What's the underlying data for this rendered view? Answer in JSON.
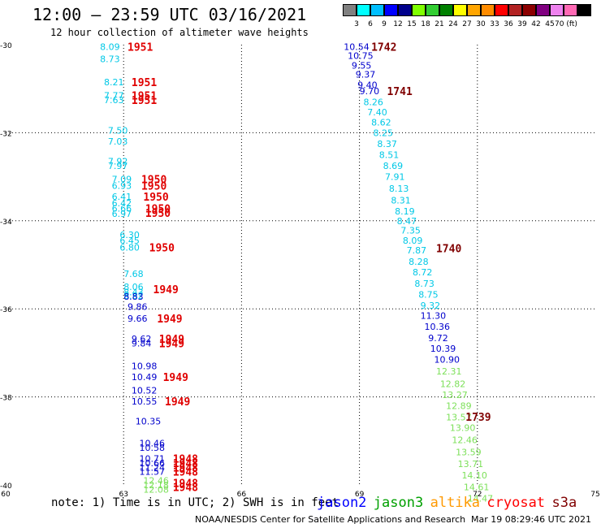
{
  "header": {
    "title": "12:00 – 23:59 UTC 03/16/2021",
    "subtitle": "12 hour collection of altimeter wave heights"
  },
  "color_scale": {
    "colors": [
      "#808080",
      "#00ffff",
      "#00bfff",
      "#0000ff",
      "#00008b",
      "#7fff00",
      "#32cd32",
      "#008000",
      "#ffff00",
      "#ffa500",
      "#ff8c00",
      "#ff0000",
      "#b22222",
      "#8b0000",
      "#800080",
      "#ee82ee",
      "#ff69b4",
      "#000000"
    ],
    "labels": [
      "3",
      "6",
      "9",
      "12",
      "15",
      "18",
      "21",
      "24",
      "27",
      "30",
      "33",
      "36",
      "39",
      "42",
      "45",
      "70 (ft)"
    ]
  },
  "axes": {
    "lat_labels": [
      "-30",
      "-32",
      "-34",
      "-36",
      "-38",
      "-40"
    ],
    "lon_labels": [
      "60",
      "63",
      "66",
      "69",
      "72",
      "75"
    ]
  },
  "track_colors": {
    "c_light": "#00c8e6",
    "c_dark": "#0000cc",
    "c_green": "#7de05a",
    "c_red": "#e00000",
    "c_maroon": "#800000"
  },
  "tracks": [
    {
      "lat": -30.05,
      "lon": 62.4,
      "v": "8.09",
      "c": "c_light"
    },
    {
      "lat": -30.32,
      "lon": 62.4,
      "v": "8.73",
      "c": "c_light"
    },
    {
      "lat": -30.85,
      "lon": 62.5,
      "v": "8.21",
      "c": "c_light"
    },
    {
      "lat": -31.15,
      "lon": 62.5,
      "v": "7.77",
      "c": "c_light"
    },
    {
      "lat": -31.25,
      "lon": 62.5,
      "v": "7.63",
      "c": "c_light"
    },
    {
      "lat": -31.95,
      "lon": 62.6,
      "v": "7.50",
      "c": "c_light"
    },
    {
      "lat": -32.2,
      "lon": 62.6,
      "v": "7.03",
      "c": "c_light"
    },
    {
      "lat": -32.65,
      "lon": 62.6,
      "v": "7.92",
      "c": "c_light"
    },
    {
      "lat": -32.75,
      "lon": 62.6,
      "v": "7.97",
      "c": "c_light"
    },
    {
      "lat": -33.05,
      "lon": 62.7,
      "v": "7.09",
      "c": "c_light"
    },
    {
      "lat": -33.2,
      "lon": 62.7,
      "v": "6.93",
      "c": "c_light"
    },
    {
      "lat": -33.45,
      "lon": 62.7,
      "v": "6.41",
      "c": "c_light"
    },
    {
      "lat": -33.6,
      "lon": 62.7,
      "v": "6.42",
      "c": "c_light"
    },
    {
      "lat": -33.72,
      "lon": 62.7,
      "v": "6.66",
      "c": "c_light"
    },
    {
      "lat": -33.84,
      "lon": 62.7,
      "v": "6.97",
      "c": "c_light"
    },
    {
      "lat": -34.32,
      "lon": 62.9,
      "v": "6.30",
      "c": "c_light"
    },
    {
      "lat": -34.45,
      "lon": 62.9,
      "v": "6.45",
      "c": "c_light"
    },
    {
      "lat": -34.6,
      "lon": 62.9,
      "v": "6.80",
      "c": "c_light"
    },
    {
      "lat": -35.2,
      "lon": 63.0,
      "v": "7.68",
      "c": "c_light"
    },
    {
      "lat": -35.5,
      "lon": 63.0,
      "v": "8.06",
      "c": "c_light"
    },
    {
      "lat": -35.62,
      "lon": 63.0,
      "v": "8.43",
      "c": "c_light"
    },
    {
      "lat": -35.7,
      "lon": 63.0,
      "v": "8.82",
      "c": "c_light"
    },
    {
      "lat": -35.72,
      "lon": 63.0,
      "v": "8.83",
      "c": "c_dark"
    },
    {
      "lat": -35.95,
      "lon": 63.1,
      "v": "9.86",
      "c": "c_dark"
    },
    {
      "lat": -36.22,
      "lon": 63.1,
      "v": "9.66",
      "c": "c_dark"
    },
    {
      "lat": -36.68,
      "lon": 63.2,
      "v": "9.62",
      "c": "c_dark"
    },
    {
      "lat": -36.78,
      "lon": 63.2,
      "v": "9.84",
      "c": "c_dark"
    },
    {
      "lat": -37.3,
      "lon": 63.2,
      "v": "10.98",
      "c": "c_dark"
    },
    {
      "lat": -37.55,
      "lon": 63.2,
      "v": "10.49",
      "c": "c_dark"
    },
    {
      "lat": -37.85,
      "lon": 63.2,
      "v": "10.52",
      "c": "c_dark"
    },
    {
      "lat": -38.1,
      "lon": 63.2,
      "v": "10.55",
      "c": "c_dark"
    },
    {
      "lat": -38.55,
      "lon": 63.3,
      "v": "10.35",
      "c": "c_dark"
    },
    {
      "lat": -39.05,
      "lon": 63.4,
      "v": "10.46",
      "c": "c_dark"
    },
    {
      "lat": -39.15,
      "lon": 63.4,
      "v": "10.58",
      "c": "c_dark"
    },
    {
      "lat": -39.4,
      "lon": 63.4,
      "v": "10.71",
      "c": "c_dark"
    },
    {
      "lat": -39.5,
      "lon": 63.4,
      "v": "10.66",
      "c": "c_dark"
    },
    {
      "lat": -39.6,
      "lon": 63.4,
      "v": "11.24",
      "c": "c_dark"
    },
    {
      "lat": -39.7,
      "lon": 63.4,
      "v": "11.57",
      "c": "c_dark"
    },
    {
      "lat": -39.9,
      "lon": 63.5,
      "v": "12.46",
      "c": "c_green"
    },
    {
      "lat": -40.0,
      "lon": 63.5,
      "v": "12.18",
      "c": "c_green"
    },
    {
      "lat": -40.1,
      "lon": 63.5,
      "v": "12.08",
      "c": "c_green"
    },
    {
      "lat": -30.05,
      "lon": 68.6,
      "v": "10.54",
      "c": "c_dark"
    },
    {
      "lat": -30.25,
      "lon": 68.7,
      "v": "10.75",
      "c": "c_dark"
    },
    {
      "lat": -30.47,
      "lon": 68.8,
      "v": "9.55",
      "c": "c_dark"
    },
    {
      "lat": -30.67,
      "lon": 68.9,
      "v": "9.37",
      "c": "c_dark"
    },
    {
      "lat": -30.91,
      "lon": 68.95,
      "v": "9.40",
      "c": "c_dark"
    },
    {
      "lat": -31.05,
      "lon": 69.0,
      "v": "9.70",
      "c": "c_dark"
    },
    {
      "lat": -31.3,
      "lon": 69.1,
      "v": "8.26",
      "c": "c_light"
    },
    {
      "lat": -31.53,
      "lon": 69.2,
      "v": "7.40",
      "c": "c_light"
    },
    {
      "lat": -31.76,
      "lon": 69.3,
      "v": "8.62",
      "c": "c_light"
    },
    {
      "lat": -32.0,
      "lon": 69.35,
      "v": "8.25",
      "c": "c_light"
    },
    {
      "lat": -32.25,
      "lon": 69.45,
      "v": "8.37",
      "c": "c_light"
    },
    {
      "lat": -32.5,
      "lon": 69.5,
      "v": "8.51",
      "c": "c_light"
    },
    {
      "lat": -32.75,
      "lon": 69.6,
      "v": "8.69",
      "c": "c_light"
    },
    {
      "lat": -33.0,
      "lon": 69.65,
      "v": "7.91",
      "c": "c_light"
    },
    {
      "lat": -33.27,
      "lon": 69.75,
      "v": "8.13",
      "c": "c_light"
    },
    {
      "lat": -33.53,
      "lon": 69.8,
      "v": "8.31",
      "c": "c_light"
    },
    {
      "lat": -33.78,
      "lon": 69.9,
      "v": "8.19",
      "c": "c_light"
    },
    {
      "lat": -34.0,
      "lon": 69.95,
      "v": "8.47",
      "c": "c_light"
    },
    {
      "lat": -34.22,
      "lon": 70.05,
      "v": "7.35",
      "c": "c_light"
    },
    {
      "lat": -34.45,
      "lon": 70.1,
      "v": "8.09",
      "c": "c_light"
    },
    {
      "lat": -34.67,
      "lon": 70.2,
      "v": "7.87",
      "c": "c_light"
    },
    {
      "lat": -34.93,
      "lon": 70.25,
      "v": "8.28",
      "c": "c_light"
    },
    {
      "lat": -35.17,
      "lon": 70.35,
      "v": "8.72",
      "c": "c_light"
    },
    {
      "lat": -35.42,
      "lon": 70.4,
      "v": "8.73",
      "c": "c_light"
    },
    {
      "lat": -35.67,
      "lon": 70.5,
      "v": "8.75",
      "c": "c_light"
    },
    {
      "lat": -35.92,
      "lon": 70.55,
      "v": "9.32",
      "c": "c_light"
    },
    {
      "lat": -36.15,
      "lon": 70.55,
      "v": "11.30",
      "c": "c_dark"
    },
    {
      "lat": -36.4,
      "lon": 70.65,
      "v": "10.36",
      "c": "c_dark"
    },
    {
      "lat": -36.66,
      "lon": 70.75,
      "v": "9.72",
      "c": "c_dark"
    },
    {
      "lat": -36.9,
      "lon": 70.8,
      "v": "10.39",
      "c": "c_dark"
    },
    {
      "lat": -37.15,
      "lon": 70.9,
      "v": "10.90",
      "c": "c_dark"
    },
    {
      "lat": -37.42,
      "lon": 70.95,
      "v": "12.31",
      "c": "c_green"
    },
    {
      "lat": -37.7,
      "lon": 71.05,
      "v": "12.82",
      "c": "c_green"
    },
    {
      "lat": -37.95,
      "lon": 71.1,
      "v": "13.27",
      "c": "c_green"
    },
    {
      "lat": -38.2,
      "lon": 71.2,
      "v": "12.89",
      "c": "c_green"
    },
    {
      "lat": -38.46,
      "lon": 71.2,
      "v": "13.57",
      "c": "c_green"
    },
    {
      "lat": -38.7,
      "lon": 71.3,
      "v": "13.90",
      "c": "c_green"
    },
    {
      "lat": -38.98,
      "lon": 71.35,
      "v": "12.46",
      "c": "c_green"
    },
    {
      "lat": -39.25,
      "lon": 71.45,
      "v": "13.59",
      "c": "c_green"
    },
    {
      "lat": -39.52,
      "lon": 71.5,
      "v": "13.71",
      "c": "c_green"
    },
    {
      "lat": -39.78,
      "lon": 71.6,
      "v": "14.10",
      "c": "c_green"
    },
    {
      "lat": -40.05,
      "lon": 71.65,
      "v": "14.61",
      "c": "c_green"
    },
    {
      "lat": -40.3,
      "lon": 71.75,
      "v": "14.47",
      "c": "c_green"
    }
  ],
  "time_labels": [
    {
      "lat": -30.05,
      "lon": 63.1,
      "v": "1951",
      "c": "c_red"
    },
    {
      "lat": -30.85,
      "lon": 63.2,
      "v": "1951",
      "c": "c_red"
    },
    {
      "lat": -31.15,
      "lon": 63.2,
      "v": "1951",
      "c": "c_red"
    },
    {
      "lat": -31.25,
      "lon": 63.2,
      "v": "1951",
      "c": "c_red"
    },
    {
      "lat": -33.05,
      "lon": 63.45,
      "v": "1950",
      "c": "c_red"
    },
    {
      "lat": -33.2,
      "lon": 63.45,
      "v": "1950",
      "c": "c_red"
    },
    {
      "lat": -33.45,
      "lon": 63.5,
      "v": "1950",
      "c": "c_red"
    },
    {
      "lat": -33.72,
      "lon": 63.55,
      "v": "1950",
      "c": "c_red"
    },
    {
      "lat": -33.82,
      "lon": 63.55,
      "v": "1950",
      "c": "c_red"
    },
    {
      "lat": -34.6,
      "lon": 63.65,
      "v": "1950",
      "c": "c_red"
    },
    {
      "lat": -35.55,
      "lon": 63.75,
      "v": "1949",
      "c": "c_red"
    },
    {
      "lat": -36.22,
      "lon": 63.85,
      "v": "1949",
      "c": "c_red"
    },
    {
      "lat": -36.68,
      "lon": 63.9,
      "v": "1949",
      "c": "c_red"
    },
    {
      "lat": -36.78,
      "lon": 63.9,
      "v": "1949",
      "c": "c_red"
    },
    {
      "lat": -37.55,
      "lon": 64.0,
      "v": "1949",
      "c": "c_red"
    },
    {
      "lat": -38.1,
      "lon": 64.05,
      "v": "1949",
      "c": "c_red"
    },
    {
      "lat": -39.4,
      "lon": 64.25,
      "v": "1948",
      "c": "c_red"
    },
    {
      "lat": -39.5,
      "lon": 64.25,
      "v": "1948",
      "c": "c_red"
    },
    {
      "lat": -39.6,
      "lon": 64.25,
      "v": "1948",
      "c": "c_red"
    },
    {
      "lat": -39.7,
      "lon": 64.25,
      "v": "1948",
      "c": "c_red"
    },
    {
      "lat": -39.95,
      "lon": 64.25,
      "v": "1948",
      "c": "c_red"
    },
    {
      "lat": -40.05,
      "lon": 64.25,
      "v": "1948",
      "c": "c_red"
    },
    {
      "lat": -30.05,
      "lon": 69.3,
      "v": "1742",
      "c": "c_maroon"
    },
    {
      "lat": -31.05,
      "lon": 69.7,
      "v": "1741",
      "c": "c_maroon"
    },
    {
      "lat": -34.62,
      "lon": 70.95,
      "v": "1740",
      "c": "c_maroon"
    },
    {
      "lat": -38.45,
      "lon": 71.7,
      "v": "1739",
      "c": "c_maroon"
    }
  ],
  "legend": {
    "note": "note:  1) Time is in UTC;  2) SWH is in feet",
    "satellites": [
      {
        "name": "jason2",
        "color": "#0000ff"
      },
      {
        "name": "jason3",
        "color": "#00a000"
      },
      {
        "name": "altika",
        "color": "#ff9900"
      },
      {
        "name": "cryosat",
        "color": "#ff0000"
      },
      {
        "name": "s3a",
        "color": "#800000"
      }
    ]
  },
  "footer": {
    "credit": "NOAA/NESDIS Center for Satellite Applications and Research",
    "timestamp": "Mar 19 08:29:46 UTC 2021"
  }
}
